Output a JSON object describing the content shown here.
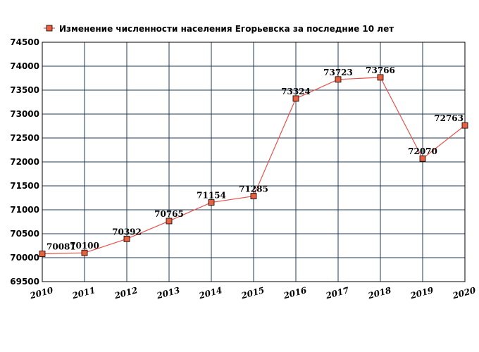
{
  "chart_data": {
    "type": "line",
    "title": "Изменение численности населения Егорьевска за последние 10 лет",
    "x": [
      "2010",
      "2011",
      "2012",
      "2013",
      "2014",
      "2015",
      "2016",
      "2017",
      "2018",
      "2019",
      "2020"
    ],
    "series": [
      {
        "name": "Изменение численности населения Егорьевска за последние 10 лет",
        "values": [
          70081,
          70100,
          70392,
          70765,
          71154,
          71285,
          73324,
          73723,
          73766,
          72070,
          72763
        ],
        "labels": [
          "70081",
          "70100",
          "70392",
          "70765",
          "71154",
          "71285",
          "73324",
          "73723",
          "73766",
          "72070",
          "72763"
        ]
      }
    ],
    "ylim": [
      69500,
      74500
    ],
    "yticks": [
      "69500",
      "70000",
      "70500",
      "71000",
      "71500",
      "72000",
      "72500",
      "73000",
      "73500",
      "74000",
      "74500"
    ],
    "grid": true,
    "legend": "top-left",
    "colors": {
      "line": "#e8524a",
      "marker": "#e8603f",
      "marker_edge": "#000000",
      "grid": "#1c3a57",
      "frame": "#000000"
    }
  }
}
